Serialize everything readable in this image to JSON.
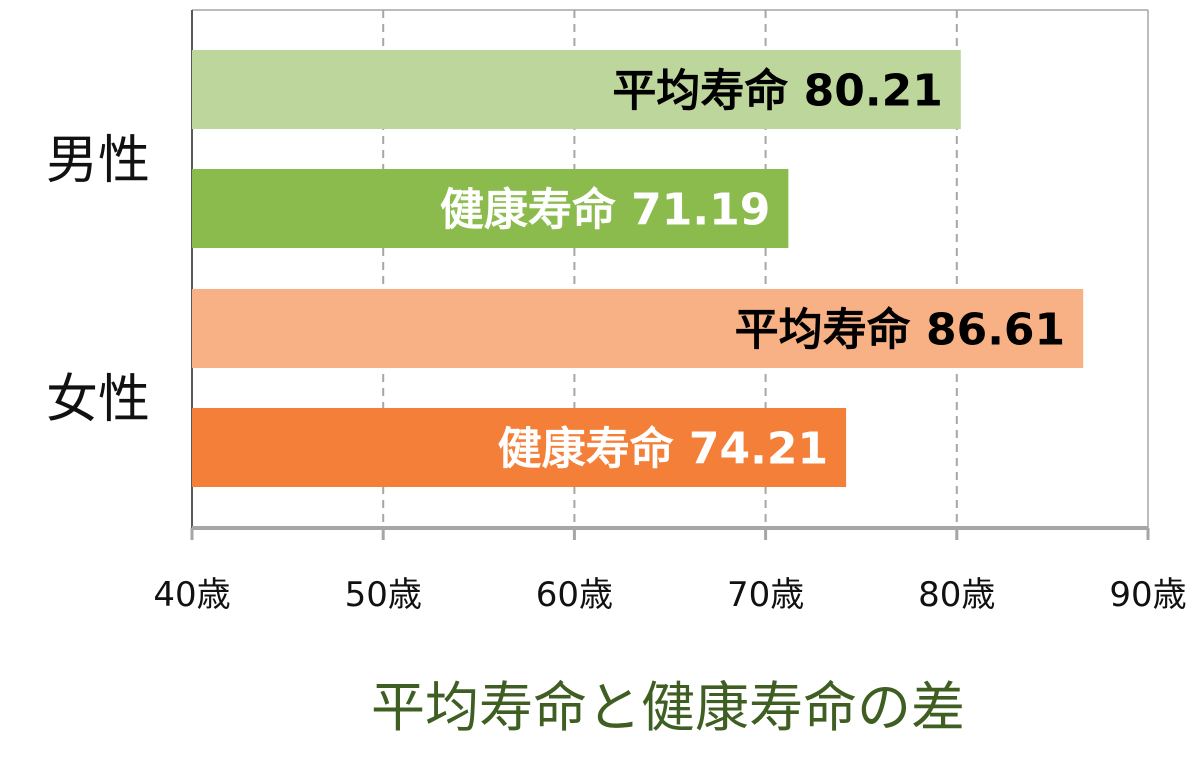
{
  "chart_data": {
    "type": "bar",
    "orientation": "horizontal",
    "title": "平均寿命と健康寿命の差",
    "groups": [
      {
        "name": "男性",
        "bars": [
          {
            "label": "平均寿命",
            "value": 80.21,
            "display": "80.21",
            "color": "#bdd69b",
            "text_color": "#000000"
          },
          {
            "label": "健康寿命",
            "value": 71.19,
            "display": "71.19",
            "color": "#8bbb4c",
            "text_color": "#ffffff"
          }
        ]
      },
      {
        "name": "女性",
        "bars": [
          {
            "label": "平均寿命",
            "value": 86.61,
            "display": "86.61",
            "color": "#f8b184",
            "text_color": "#000000"
          },
          {
            "label": "健康寿命",
            "value": 74.21,
            "display": "74.21",
            "color": "#f47f38",
            "text_color": "#ffffff"
          }
        ]
      }
    ],
    "x_ticks": [
      40,
      50,
      60,
      70,
      80,
      90
    ],
    "x_tick_labels": [
      "40歳",
      "50歳",
      "60歳",
      "70歳",
      "80歳",
      "90歳"
    ],
    "xlim": [
      40,
      90
    ],
    "grid": "vertical dashed",
    "title_color": "#3f5f22"
  }
}
